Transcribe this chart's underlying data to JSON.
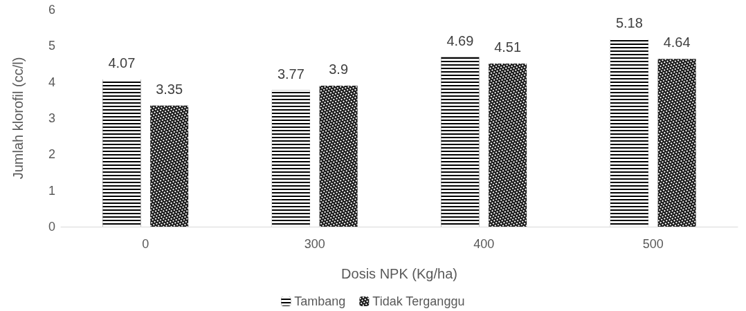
{
  "chart_data": {
    "type": "bar",
    "xlabel": "Dosis NPK (Kg/ha)",
    "ylabel": "Jumlah klorofil (cc/l)",
    "categories": [
      "0",
      "300",
      "400",
      "500"
    ],
    "series": [
      {
        "name": "Tambang",
        "color": "#000000",
        "values": [
          4.07,
          3.77,
          4.69,
          5.18
        ]
      },
      {
        "name": "Tidak Terganggu",
        "color": "#1a1a1a",
        "values": [
          3.35,
          3.9,
          4.51,
          4.64
        ]
      }
    ],
    "ylim": [
      0,
      6
    ],
    "yticks": [
      0,
      1,
      2,
      3,
      4,
      5,
      6
    ],
    "data_labels": true,
    "legend": "bottom"
  }
}
